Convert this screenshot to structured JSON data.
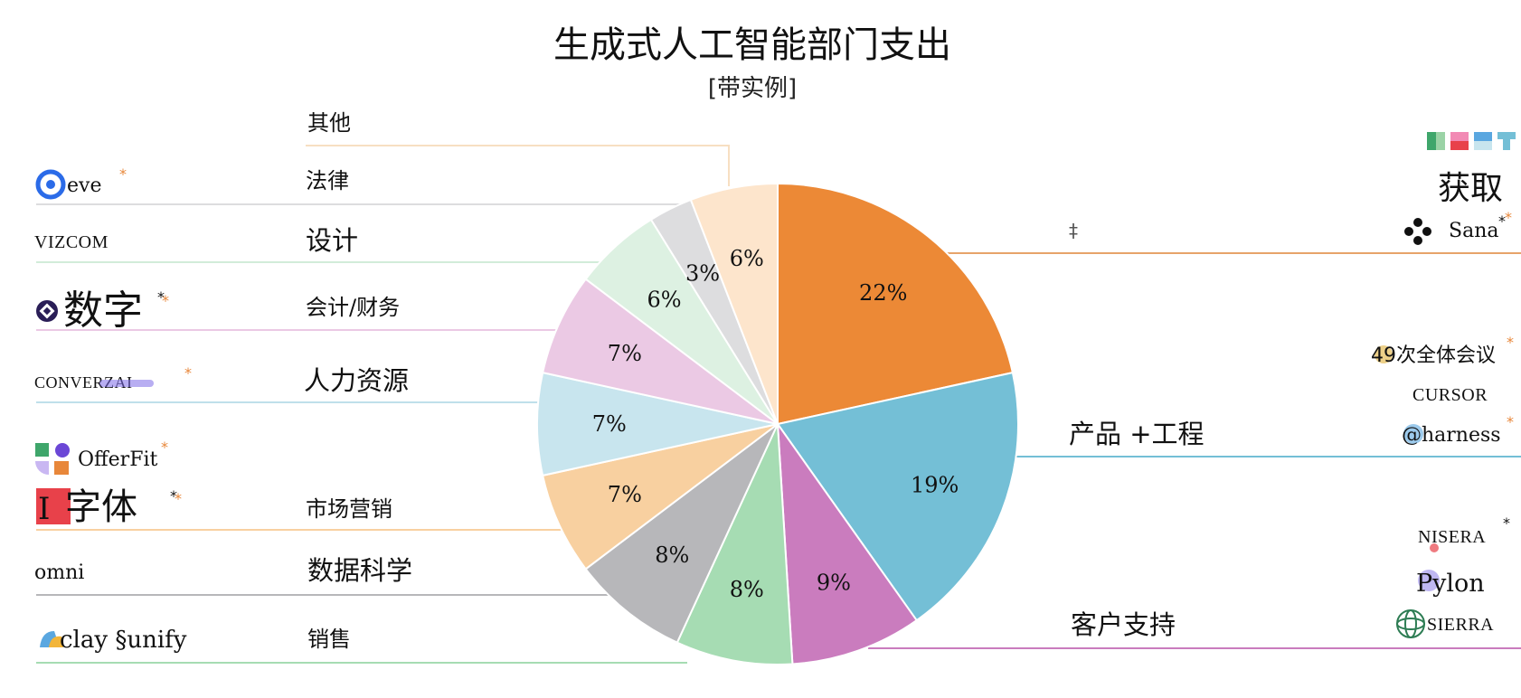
{
  "chart_data": {
    "type": "pie",
    "title": "生成式人工智能部门支出",
    "subtitle": "[带实例]",
    "slices": [
      {
        "label": "获取",
        "value": 22,
        "display": "22%",
        "color": "#EC8936"
      },
      {
        "label": "产品 +工程",
        "value": 19,
        "display": "19%",
        "color": "#74BFD6"
      },
      {
        "label": "客户支持",
        "value": 9,
        "display": "9%",
        "color": "#CA7CBE"
      },
      {
        "label": "销售",
        "value": 8,
        "display": "8%",
        "color": "#A6DCB3"
      },
      {
        "label": "数据科学",
        "value": 8,
        "display": "8%",
        "color": "#B7B7BA"
      },
      {
        "label": "市场营销",
        "value": 7,
        "display": "7%",
        "color": "#F8D0A0"
      },
      {
        "label": "人力资源",
        "value": 7,
        "display": "7%",
        "color": "#C8E5EE"
      },
      {
        "label": "会计/财务",
        "value": 7,
        "display": "7%",
        "color": "#EBC9E4"
      },
      {
        "label": "设计",
        "value": 6,
        "display": "6%",
        "color": "#DDF1E2"
      },
      {
        "label": "法律",
        "value": 3,
        "display": "3%",
        "color": "#DDDDDF"
      },
      {
        "label": "其他",
        "value": 6,
        "display": "6%",
        "color": "#FDE5CC"
      }
    ],
    "legend": "none"
  },
  "vendors": {
    "acquisition": [
      "Sana",
      "‡"
    ],
    "product_engineering": [
      "49次全体会议",
      "CURSOR",
      "@harness"
    ],
    "customer_support": [
      "NISERA",
      "Pylon",
      "SIERRA"
    ],
    "legal": "eve",
    "design": "VIZCOM",
    "accounting": "数字",
    "hr": "CONVERZAI",
    "marketing": [
      "OfferFit",
      "字体"
    ],
    "data_science": "omni",
    "sales": "clay §unify"
  },
  "stars": {
    "orange": "*",
    "dark": "*"
  }
}
